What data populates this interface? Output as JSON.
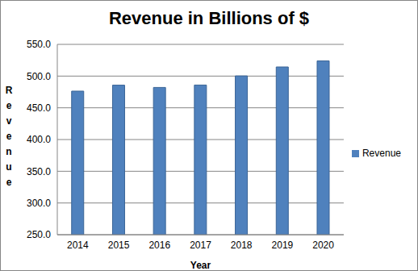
{
  "chart_data": {
    "type": "bar",
    "title": "Revenue in Billions of $",
    "x_label": "Year",
    "y_label": "Revenue",
    "categories": [
      "2014",
      "2015",
      "2016",
      "2017",
      "2018",
      "2019",
      "2020"
    ],
    "series": [
      {
        "name": "Revenue",
        "color": "#4f81bd",
        "values": [
          476.3,
          485.7,
          482.1,
          485.9,
          500.3,
          514.4,
          524.0
        ]
      }
    ],
    "ylim": [
      250,
      550
    ],
    "yticks": [
      {
        "value": 250,
        "label": "250.0"
      },
      {
        "value": 300,
        "label": "300.0"
      },
      {
        "value": 350,
        "label": "350.0"
      },
      {
        "value": 400,
        "label": "400.0"
      },
      {
        "value": 450,
        "label": "450.0"
      },
      {
        "value": 500,
        "label": "500.0"
      },
      {
        "value": 550,
        "label": "550.0"
      }
    ],
    "grid": true,
    "legend": "right"
  }
}
